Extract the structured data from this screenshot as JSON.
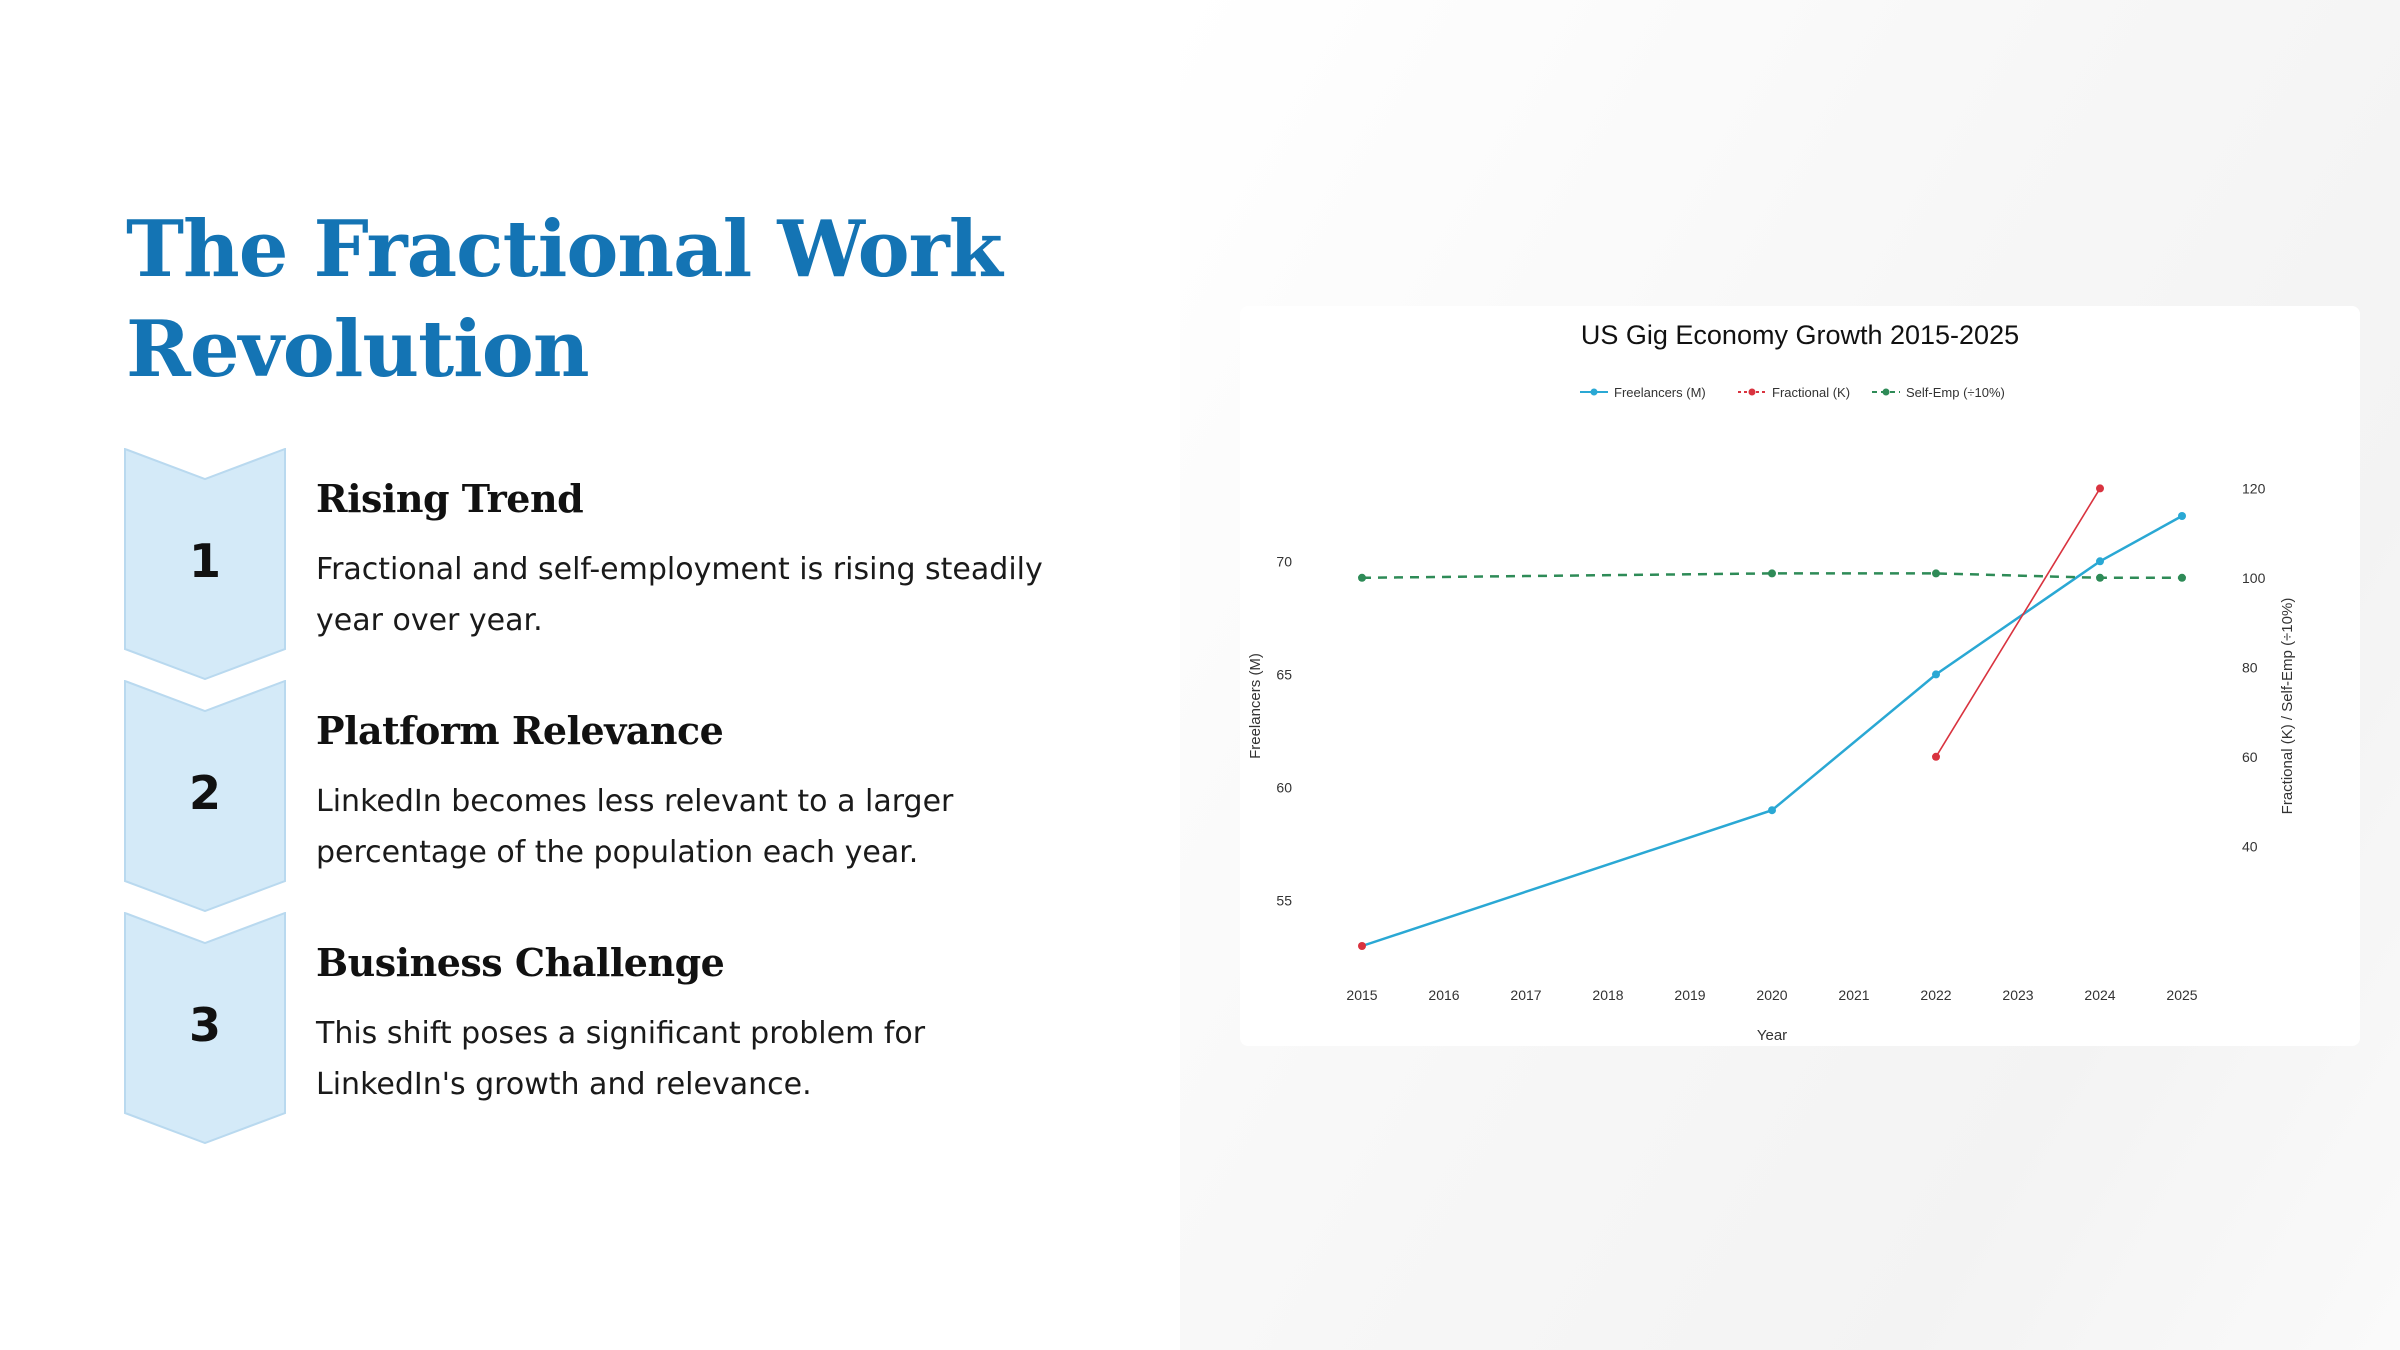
{
  "slide": {
    "title": "The Fractional Work Revolution"
  },
  "steps": [
    {
      "number": "1",
      "heading": "Rising Trend",
      "body": "Fractional and self-employment is rising steadily year over year."
    },
    {
      "number": "2",
      "heading": "Platform Relevance",
      "body": "LinkedIn becomes less relevant to a larger percentage of the population each year."
    },
    {
      "number": "3",
      "heading": "Business Challenge",
      "body": "This shift poses a significant problem for LinkedIn's growth and relevance."
    }
  ],
  "colors": {
    "title": "#1474b4",
    "chevron_fill": "#d4eaf8",
    "chevron_stroke": "#b9d9ef",
    "freelancers": "#2aa8d4",
    "fractional": "#d9333f",
    "self_emp": "#2e8b57"
  },
  "chart_data": {
    "type": "line",
    "title": "US Gig Economy Growth 2015-2025",
    "xlabel": "Year",
    "ylabel_left": "Freelancers (M)",
    "ylabel_right": "Fractional (K) / Self-Emp (÷10%)",
    "x_ticks": [
      "2015",
      "2016",
      "2017",
      "2018",
      "2019",
      "2020",
      "2021",
      "2022",
      "2023",
      "2024",
      "2025"
    ],
    "y_left_ticks": [
      "55",
      "60",
      "65",
      "70"
    ],
    "y_right_ticks": [
      "40",
      "60",
      "80",
      "100",
      "120"
    ],
    "y_left_range": [
      53,
      72
    ],
    "y_right_range": [
      30,
      125
    ],
    "legend_position": "top-center",
    "grid": false,
    "series": [
      {
        "name": "Freelancers (M)",
        "axis": "left",
        "style": "solid",
        "color": "#2aa8d4",
        "x": [
          2015,
          2020,
          2022,
          2024,
          2025
        ],
        "y": [
          53.0,
          59.0,
          65.0,
          70.0,
          72.0
        ]
      },
      {
        "name": "Fractional (K)",
        "axis": "right",
        "style": "solid",
        "color": "#d9333f",
        "x": [
          2022,
          2024
        ],
        "y": [
          60,
          120
        ]
      },
      {
        "name": "Self-Emp (÷10%)",
        "axis": "right",
        "style": "dashed",
        "color": "#2e8b57",
        "x": [
          2015,
          2020,
          2022,
          2024,
          2025
        ],
        "y": [
          100,
          101,
          101,
          100,
          100
        ]
      }
    ]
  }
}
